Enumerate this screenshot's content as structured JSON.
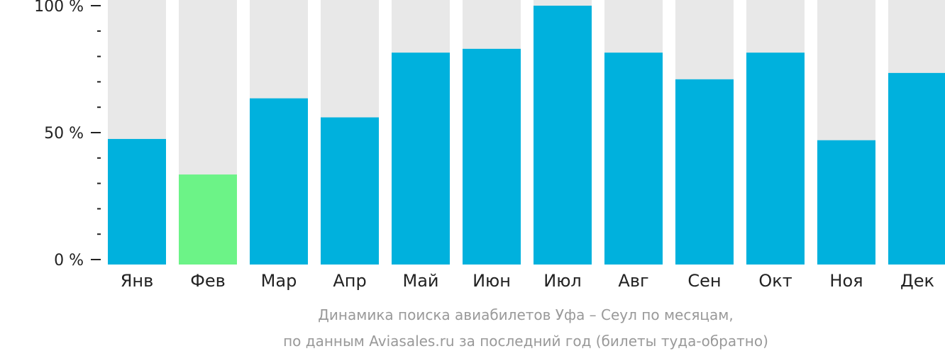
{
  "chart_data": {
    "type": "bar",
    "categories": [
      "Янв",
      "Фев",
      "Мар",
      "Апр",
      "Май",
      "Июн",
      "Июл",
      "Авг",
      "Сен",
      "Окт",
      "Ноя",
      "Дек"
    ],
    "values": [
      47.5,
      33.5,
      63.5,
      56,
      81.5,
      83,
      100,
      81.5,
      71,
      81.5,
      47,
      73.5
    ],
    "highlight_index": 1,
    "ylim": [
      0,
      100
    ],
    "yticks": [
      "0 %",
      "50 %",
      "100 %"
    ],
    "grid": false,
    "caption_lines": [
      "Динамика поиска авиабилетов Уфа – Сеул по месяцам,",
      "по данным Aviasales.ru за последний год (билеты туда-обратно)"
    ],
    "colors": {
      "bar": "#00b1dd",
      "highlight": "#6cf387",
      "track": "#e8e8e8",
      "axis": "#222222",
      "caption": "#999999"
    }
  }
}
